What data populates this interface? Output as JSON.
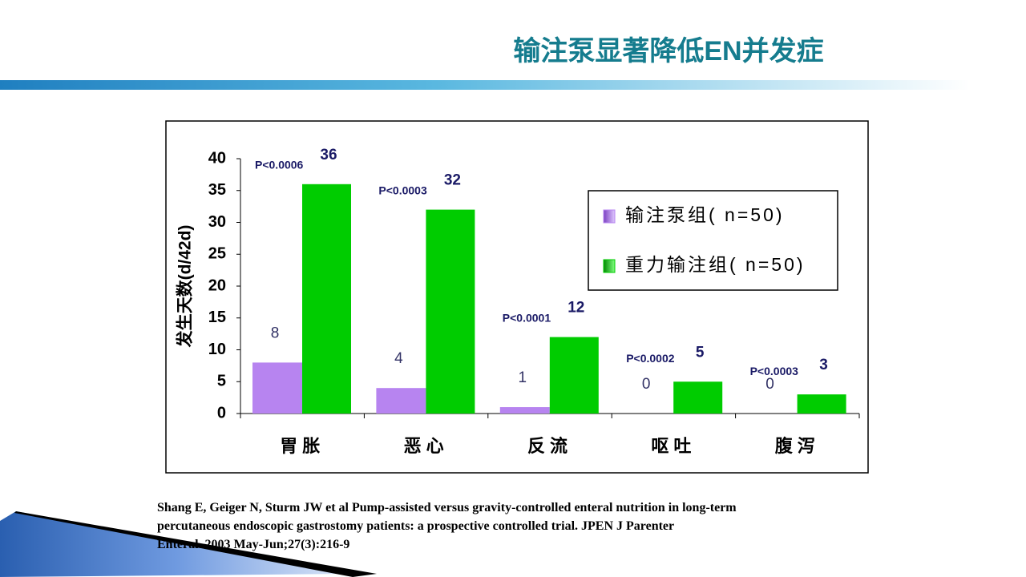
{
  "title": "输注泵显著降低EN并发症",
  "chart_data": {
    "type": "bar",
    "y_label": "发生天数(d/42d)",
    "categories": [
      "胃胀",
      "恶心",
      "反流",
      "呕吐",
      "腹泻"
    ],
    "series": [
      {
        "name": "输注泵组( n=50)",
        "color": "#b784f0",
        "values": [
          8,
          4,
          1,
          0,
          0
        ]
      },
      {
        "name": "重力输注组( n=50)",
        "color": "#00cc00",
        "values": [
          36,
          32,
          12,
          5,
          3
        ]
      }
    ],
    "annotations": [
      "P<0.0006",
      "P<0.0003",
      "P<0.0001",
      "P<0.0002",
      "P<0.0003"
    ],
    "ylim": [
      0,
      40
    ],
    "yticks": [
      0,
      5,
      10,
      15,
      20,
      25,
      30,
      35,
      40
    ]
  },
  "citation": [
    "Shang E, Geiger N, Sturm JW et al Pump-assisted versus gravity-controlled enteral nutrition in long-term",
    "percutaneous endoscopic gastrostomy patients: a prospective controlled trial. JPEN J Parenter",
    "Enteral. 2003 May-Jun;27(3):216-9"
  ]
}
